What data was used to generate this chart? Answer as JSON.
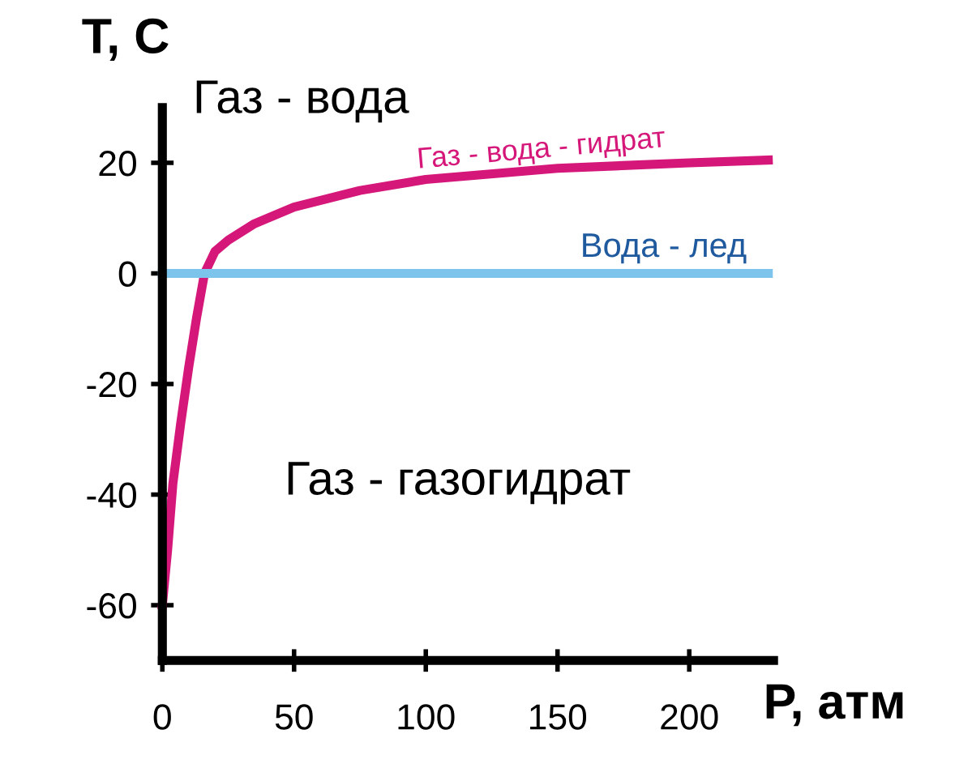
{
  "chart_data": {
    "type": "line",
    "xlabel": "P, атм",
    "ylabel": "T, C",
    "xlim": [
      0,
      232
    ],
    "ylim": [
      -70,
      30
    ],
    "xticks": [
      0,
      50,
      100,
      150,
      200
    ],
    "yticks": [
      -60,
      -40,
      -20,
      0,
      20
    ],
    "grid": false,
    "marker": "none",
    "line_style": "solid",
    "series": [
      {
        "name": "Газ - вода - гидрат",
        "color": "#d6177a",
        "x": [
          0,
          2,
          4,
          7,
          10,
          13,
          16,
          20,
          25,
          35,
          50,
          75,
          100,
          150,
          200,
          230
        ],
        "values": [
          -60,
          -50,
          -38,
          -27,
          -17,
          -8,
          0,
          4,
          6,
          9,
          12,
          15,
          17,
          19,
          20,
          20.5
        ]
      },
      {
        "name": "Вода - лед",
        "color": "#7cc4ec",
        "x": [
          0,
          230
        ],
        "values": [
          0,
          0
        ]
      }
    ],
    "annotations": [
      "Газ - вода",
      "Газ - газогидрат"
    ]
  }
}
